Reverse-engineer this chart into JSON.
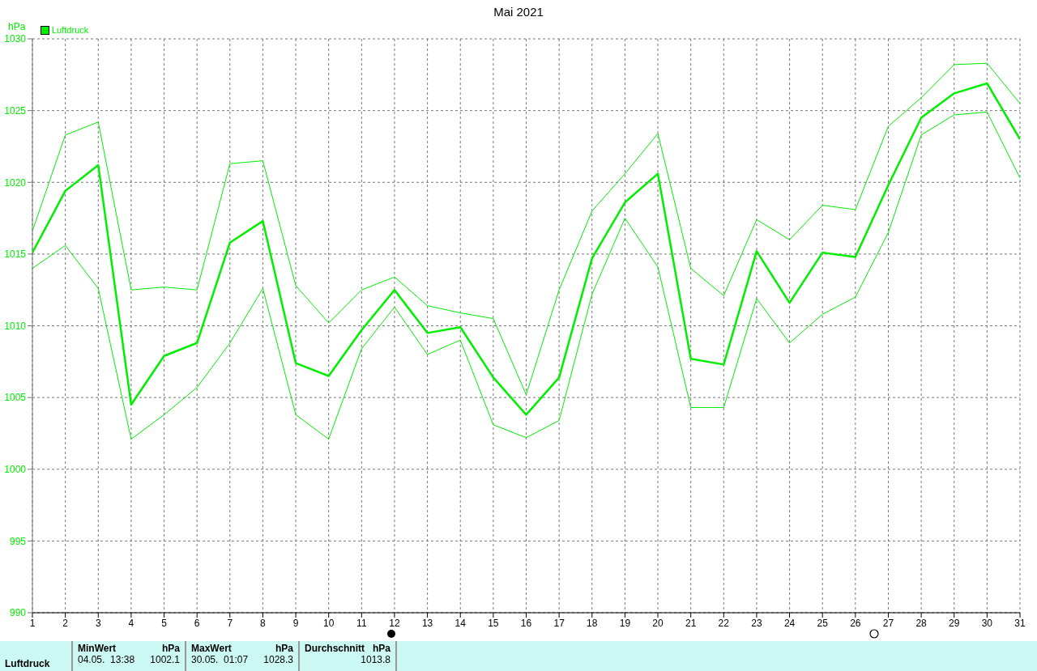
{
  "chart_data": {
    "type": "line",
    "title": "Mai 2021",
    "ylabel": "hPa",
    "x": [
      1,
      2,
      3,
      4,
      5,
      6,
      7,
      8,
      9,
      10,
      11,
      12,
      13,
      14,
      15,
      16,
      17,
      18,
      19,
      20,
      21,
      22,
      23,
      24,
      25,
      26,
      27,
      28,
      29,
      30,
      31
    ],
    "series": [
      {
        "name": "Luftdruck",
        "color": "#00ee00",
        "values": [
          1015.1,
          1019.4,
          1021.2,
          1004.5,
          1007.9,
          1008.8,
          1015.8,
          1017.3,
          1007.4,
          1006.5,
          1009.7,
          1012.5,
          1009.5,
          1009.9,
          1006.4,
          1003.8,
          1006.4,
          1014.7,
          1018.6,
          1020.6,
          1007.7,
          1007.3,
          1015.2,
          1011.6,
          1015.1,
          1014.8,
          1019.8,
          1024.5,
          1026.2,
          1026.9,
          1023.0
        ]
      },
      {
        "color": "#00ee00",
        "values": [
          1016.6,
          1023.3,
          1024.2,
          1012.5,
          1012.7,
          1012.5,
          1021.3,
          1021.5,
          1012.8,
          1010.2,
          1012.5,
          1013.4,
          1011.4,
          1010.9,
          1010.5,
          1005.2,
          1012.5,
          1018.0,
          1020.6,
          1023.4,
          1014.0,
          1012.1,
          1017.4,
          1016.0,
          1018.4,
          1018.1,
          1023.9,
          1025.9,
          1028.2,
          1028.3,
          1025.5
        ]
      },
      {
        "color": "#00ee00",
        "values": [
          1014.0,
          1015.6,
          1012.6,
          1002.1,
          1003.8,
          1005.7,
          1008.8,
          1012.6,
          1003.8,
          1002.1,
          1008.4,
          1011.3,
          1008.0,
          1009.0,
          1003.1,
          1002.2,
          1003.4,
          1012.2,
          1017.5,
          1014.1,
          1004.3,
          1004.3,
          1011.9,
          1008.8,
          1010.8,
          1012.0,
          1016.5,
          1023.3,
          1024.7,
          1024.9,
          1020.3
        ]
      }
    ],
    "xlim": [
      1,
      31
    ],
    "xticks": [
      1,
      2,
      3,
      4,
      5,
      6,
      7,
      8,
      9,
      10,
      11,
      12,
      13,
      14,
      15,
      16,
      17,
      18,
      19,
      20,
      21,
      22,
      23,
      24,
      25,
      26,
      27,
      28,
      29,
      30,
      31
    ],
    "ylim": [
      990,
      1030
    ],
    "yticks": [
      990,
      995,
      1000,
      1005,
      1010,
      1015,
      1020,
      1025,
      1030
    ],
    "grid": true,
    "legend": "top left",
    "marker": "none",
    "line_style": "solid",
    "annotations": [
      "Luftdruck",
      "MinWert",
      "hPa",
      "04.05.  13:38",
      "1002.1",
      "MaxWert",
      "hPa",
      "30.05.  01:07",
      "1028.3",
      "Durchschnitt",
      "hPa",
      "1013.8"
    ]
  }
}
